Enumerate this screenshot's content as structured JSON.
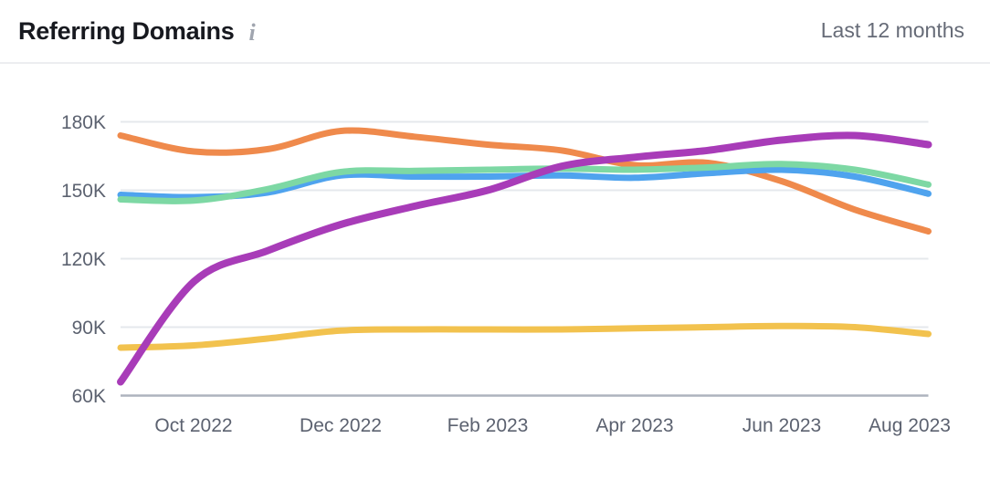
{
  "header": {
    "title": "Referring Domains",
    "info_glyph": "i",
    "period": "Last 12 months"
  },
  "chart_data": {
    "type": "line",
    "title": "Referring Domains",
    "x_unit": "month",
    "x": [
      "Sep 2022",
      "Oct 2022",
      "Nov 2022",
      "Dec 2022",
      "Jan 2023",
      "Feb 2023",
      "Mar 2023",
      "Apr 2023",
      "May 2023",
      "Jun 2023",
      "Jul 2023",
      "Aug 2023"
    ],
    "x_ticks": [
      "Oct 2022",
      "Dec 2022",
      "Feb 2023",
      "Apr 2023",
      "Jun 2023",
      "Aug 2023"
    ],
    "y_unit": "referring domains (values in thousands, K)",
    "ylim": [
      60,
      180
    ],
    "y_ticks": [
      "180K",
      "150K",
      "120K",
      "90K",
      "60K"
    ],
    "grid": true,
    "legend": false,
    "series": [
      {
        "name": "yellow",
        "color": "#F2C24E",
        "stroke_width": 7,
        "values_k": [
          81,
          82,
          85,
          88.5,
          89,
          89,
          89,
          89.5,
          90,
          90.5,
          90,
          87
        ]
      },
      {
        "name": "orange",
        "color": "#EF8A4C",
        "stroke_width": 7,
        "values_k": [
          174,
          167,
          168,
          176,
          173.5,
          170,
          167.5,
          161,
          162,
          154,
          141.5,
          132
        ]
      },
      {
        "name": "blue",
        "color": "#4FA3EE",
        "stroke_width": 7,
        "values_k": [
          148,
          147,
          149,
          156.5,
          156,
          156,
          156.5,
          155.5,
          157.5,
          159,
          156,
          148.5
        ]
      },
      {
        "name": "green",
        "color": "#7DD8A4",
        "stroke_width": 7,
        "values_k": [
          146,
          145.5,
          150.5,
          158,
          158.5,
          159,
          159.5,
          159,
          160,
          161.5,
          159,
          152.5
        ]
      },
      {
        "name": "purple",
        "color": "#A83CB8",
        "stroke_width": 8,
        "values_k": [
          66,
          110,
          123.5,
          135,
          143,
          150,
          160.5,
          164.5,
          167.5,
          172,
          174,
          170
        ]
      }
    ]
  }
}
